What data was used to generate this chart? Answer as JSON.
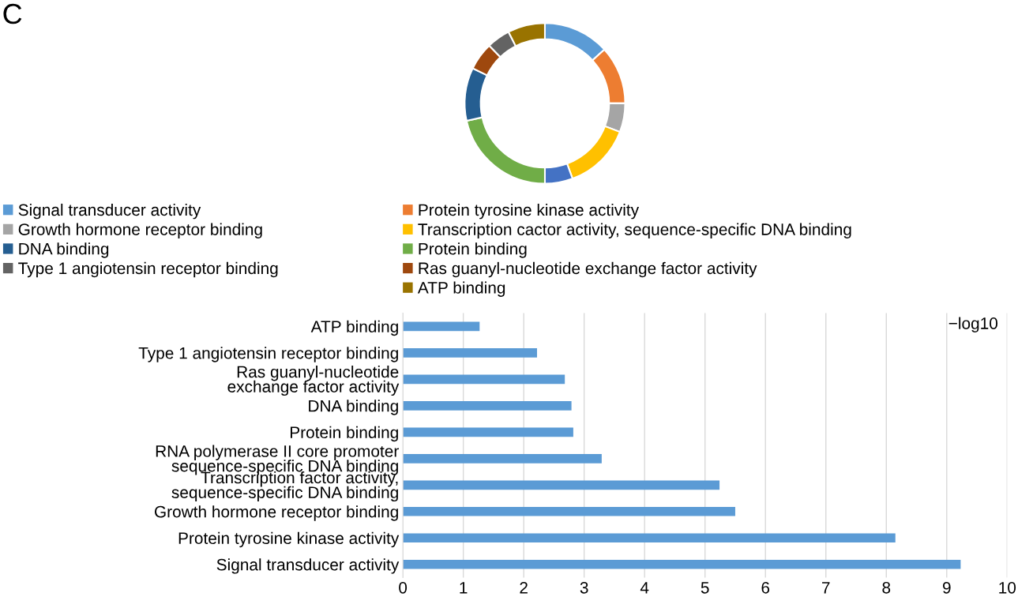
{
  "chart_data": [
    {
      "type": "donut",
      "annotations": [
        "C"
      ],
      "categories": [
        "Signal transducer activity",
        "Protein tyrosine kinase activity",
        "Growth hormone receptor binding",
        "Transcription cactor activity, sequence-specific DNA binding",
        null,
        "Protein binding",
        "DNA binding",
        "Ras guanyl-nucleotide exchange factor activity",
        "Type 1 angiotensin receptor binding",
        "ATP binding"
      ],
      "values": [
        13.3,
        11.7,
        5.8,
        13.6,
        5.6,
        21.5,
        10.7,
        5.6,
        4.7,
        7.5
      ],
      "colors": [
        "#5b9bd5",
        "#ed7d31",
        "#a5a5a5",
        "#ffc000",
        "#4472c4",
        "#70ad47",
        "#255e91",
        "#9e480e",
        "#636363",
        "#997300"
      ],
      "legend": "bottom"
    },
    {
      "type": "bar",
      "orientation": "horizontal",
      "categories": [
        "ATP binding",
        "Type 1 angiotensin receptor binding",
        "Ras guanyl-nucleotide\nexchange factor activity",
        "DNA binding",
        "Protein binding",
        "RNA polymerase II core promoter\nsequence-specific DNA binding",
        "Transcription factor activity,\nsequence-specific DNA binding",
        "Growth hormone receptor binding",
        "Protein tyrosine kinase activity",
        "Signal transducer activity"
      ],
      "values": [
        1.27,
        2.22,
        2.68,
        2.79,
        2.82,
        3.29,
        5.24,
        5.5,
        8.15,
        9.23
      ],
      "color": "#5b9bd5",
      "xlim": [
        0,
        10
      ],
      "xticks": [
        0,
        1,
        2,
        3,
        4,
        5,
        6,
        7,
        8,
        9,
        10
      ],
      "grid": "x",
      "annotations": [
        "−log10"
      ]
    }
  ]
}
